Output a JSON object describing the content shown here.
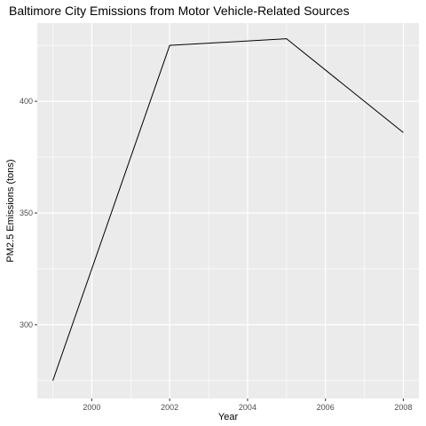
{
  "chart_data": {
    "type": "line",
    "title": "Baltimore City Emissions from Motor Vehicle-Related Sources",
    "xlabel": "Year",
    "ylabel": "PM2.5 Emissions (tons)",
    "x": [
      1999,
      2002,
      2005,
      2008
    ],
    "series": [
      {
        "values": [
          275,
          425,
          428,
          386
        ],
        "color": "#000000"
      }
    ],
    "xlim": [
      1998.6,
      2008.4
    ],
    "ylim": [
      267,
      435
    ],
    "xticks": [
      2000,
      2002,
      2004,
      2006,
      2008
    ],
    "xtick_labels": [
      "2000",
      "2002",
      "2004",
      "2006",
      "2008"
    ],
    "yticks": [
      300,
      350,
      400
    ],
    "ytick_labels": [
      "300",
      "350",
      "400"
    ],
    "x_minor": [
      1999,
      2001,
      2003,
      2005,
      2007
    ],
    "y_minor": [
      275,
      325,
      375,
      425
    ],
    "grid": true,
    "panel_background": "#ebebeb",
    "grid_color": "#ffffff"
  }
}
